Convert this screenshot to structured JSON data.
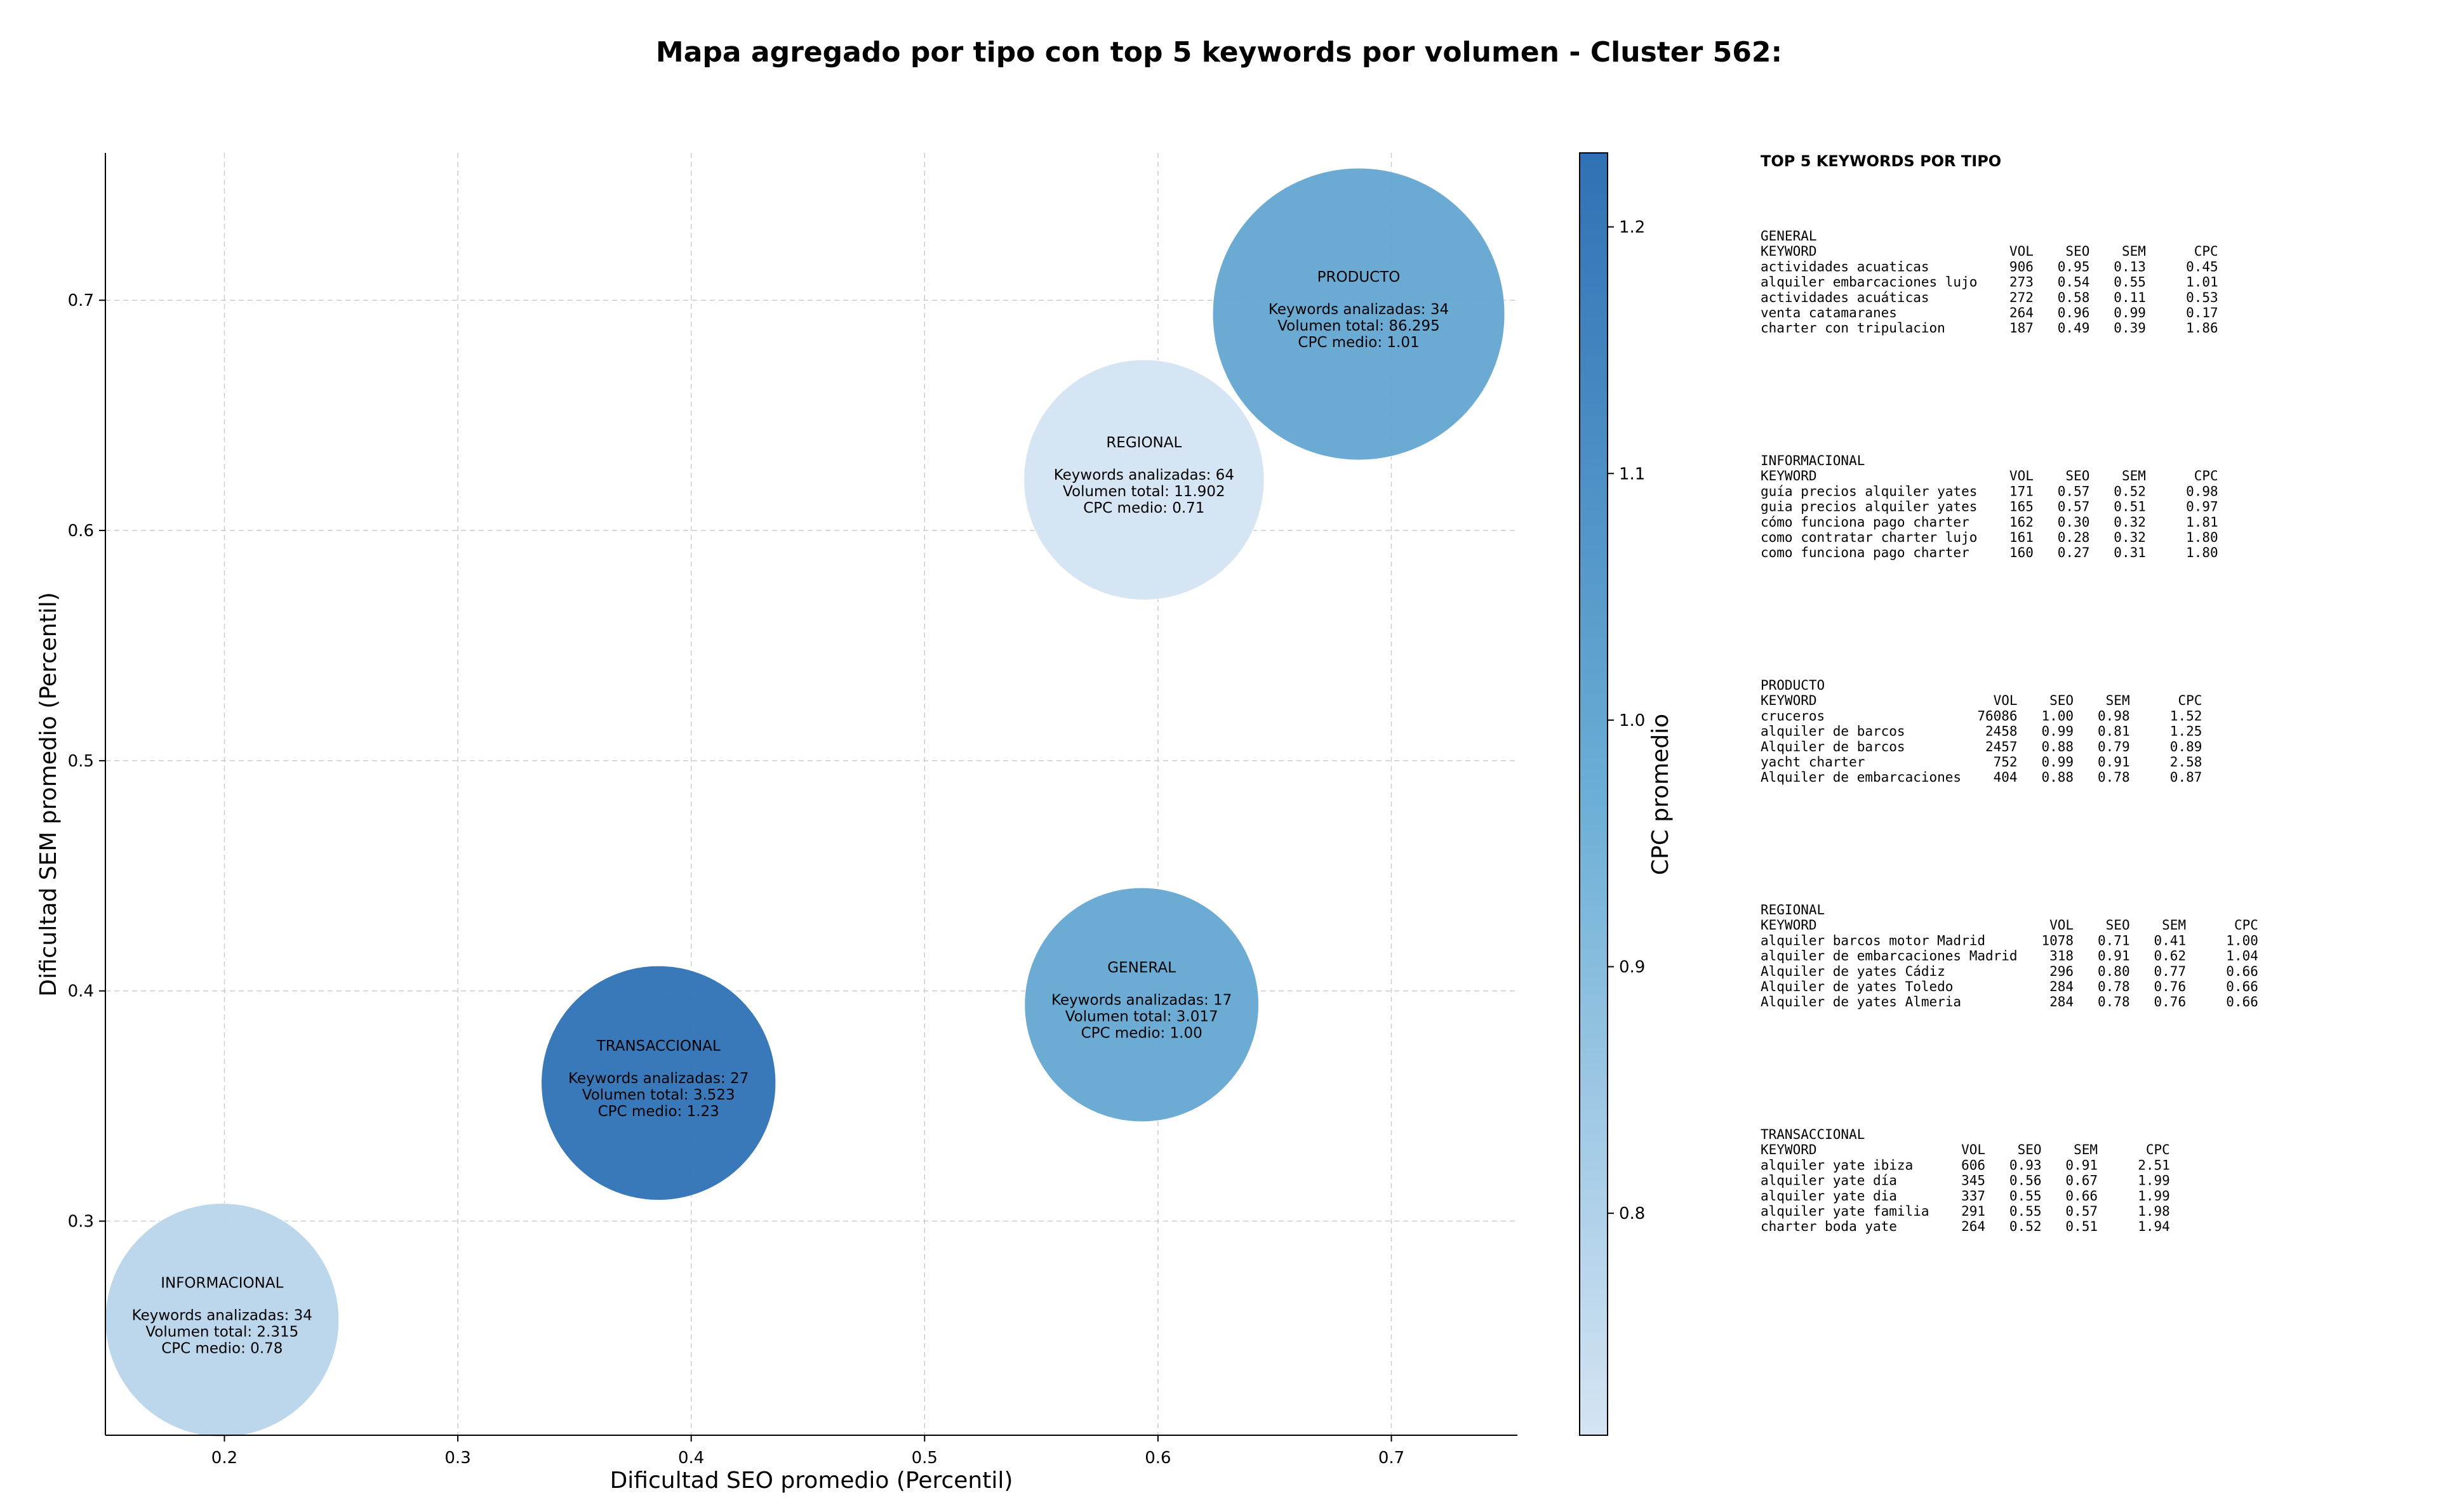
{
  "chart_data": {
    "type": "scatter",
    "title": "Mapa agregado por tipo con top 5 keywords por volumen - Cluster 562:",
    "xlabel": "Dificultad SEO promedio (Percentil)",
    "ylabel": "Dificultad SEM promedio (Percentil)",
    "xlim": [
      0.149,
      0.754
    ],
    "ylim": [
      0.207,
      0.764
    ],
    "xticks": [
      "0.2",
      "0.3",
      "0.4",
      "0.5",
      "0.6",
      "0.7"
    ],
    "yticks": [
      "0.3",
      "0.4",
      "0.5",
      "0.6",
      "0.7"
    ],
    "grid": true,
    "colorbar": {
      "label": "CPC promedio",
      "range": [
        0.71,
        1.23
      ],
      "ticks": [
        "0.8",
        "0.9",
        "1.0",
        "1.1",
        "1.2"
      ]
    },
    "bubbles": [
      {
        "name": "INFORMACIONAL",
        "x": 0.199,
        "y": 0.257,
        "cpc": 0.78,
        "line1": "Keywords analizadas: 34",
        "line2": "Volumen total: 2.315",
        "line3": "CPC medio: 0.78"
      },
      {
        "name": "TRANSACCIONAL",
        "x": 0.386,
        "y": 0.36,
        "cpc": 1.23,
        "line1": "Keywords analizadas: 27",
        "line2": "Volumen total: 3.523",
        "line3": "CPC medio: 1.23"
      },
      {
        "name": "GENERAL",
        "x": 0.593,
        "y": 0.394,
        "cpc": 1.0,
        "line1": "Keywords analizadas: 17",
        "line2": "Volumen total: 3.017",
        "line3": "CPC medio: 1.00"
      },
      {
        "name": "PRODUCTO",
        "x": 0.686,
        "y": 0.694,
        "cpc": 1.01,
        "line1": "Keywords analizadas: 34",
        "line2": "Volumen total: 86.295",
        "line3": "CPC medio: 1.01"
      },
      {
        "name": "REGIONAL",
        "x": 0.594,
        "y": 0.622,
        "cpc": 0.71,
        "line1": "Keywords analizadas: 64",
        "line2": "Volumen total: 11.902",
        "line3": "CPC medio: 0.71"
      }
    ],
    "side_panel": {
      "title": "TOP 5 KEYWORDS POR TIPO",
      "groups": [
        {
          "name": "GENERAL",
          "header": "KEYWORD                        VOL    SEO    SEM      CPC",
          "rows": [
            "actividades acuaticas          906   0.95   0.13     0.45",
            "alquiler embarcaciones lujo    273   0.54   0.55     1.01",
            "actividades acuáticas          272   0.58   0.11     0.53",
            "venta catamaranes              264   0.96   0.99     0.17",
            "charter con tripulacion        187   0.49   0.39     1.86"
          ]
        },
        {
          "name": "INFORMACIONAL",
          "header": "KEYWORD                        VOL    SEO    SEM      CPC",
          "rows": [
            "guía precios alquiler yates    171   0.57   0.52     0.98",
            "guia precios alquiler yates    165   0.57   0.51     0.97",
            "cómo funciona pago charter     162   0.30   0.32     1.81",
            "como contratar charter lujo    161   0.28   0.32     1.80",
            "como funciona pago charter     160   0.27   0.31     1.80"
          ]
        },
        {
          "name": "PRODUCTO",
          "header": "KEYWORD                      VOL    SEO    SEM      CPC",
          "rows": [
            "cruceros                   76086   1.00   0.98     1.52",
            "alquiler de barcos          2458   0.99   0.81     1.25",
            "Alquiler de barcos          2457   0.88   0.79     0.89",
            "yacht charter                752   0.99   0.91     2.58",
            "Alquiler de embarcaciones    404   0.88   0.78     0.87"
          ]
        },
        {
          "name": "REGIONAL",
          "header": "KEYWORD                             VOL    SEO    SEM      CPC",
          "rows": [
            "alquiler barcos motor Madrid       1078   0.71   0.41     1.00",
            "alquiler de embarcaciones Madrid    318   0.91   0.62     1.04",
            "Alquiler de yates Cádiz             296   0.80   0.77     0.66",
            "Alquiler de yates Toledo            284   0.78   0.76     0.66",
            "Alquiler de yates Almeria           284   0.78   0.76     0.66"
          ]
        },
        {
          "name": "TRANSACCIONAL",
          "header": "KEYWORD                  VOL    SEO    SEM      CPC",
          "rows": [
            "alquiler yate ibiza      606   0.93   0.91     2.51",
            "alquiler yate día        345   0.56   0.67     1.99",
            "alquiler yate dia        337   0.55   0.66     1.99",
            "alquiler yate familia    291   0.55   0.57     1.98",
            "charter boda yate        264   0.52   0.51     1.94"
          ]
        }
      ]
    }
  }
}
